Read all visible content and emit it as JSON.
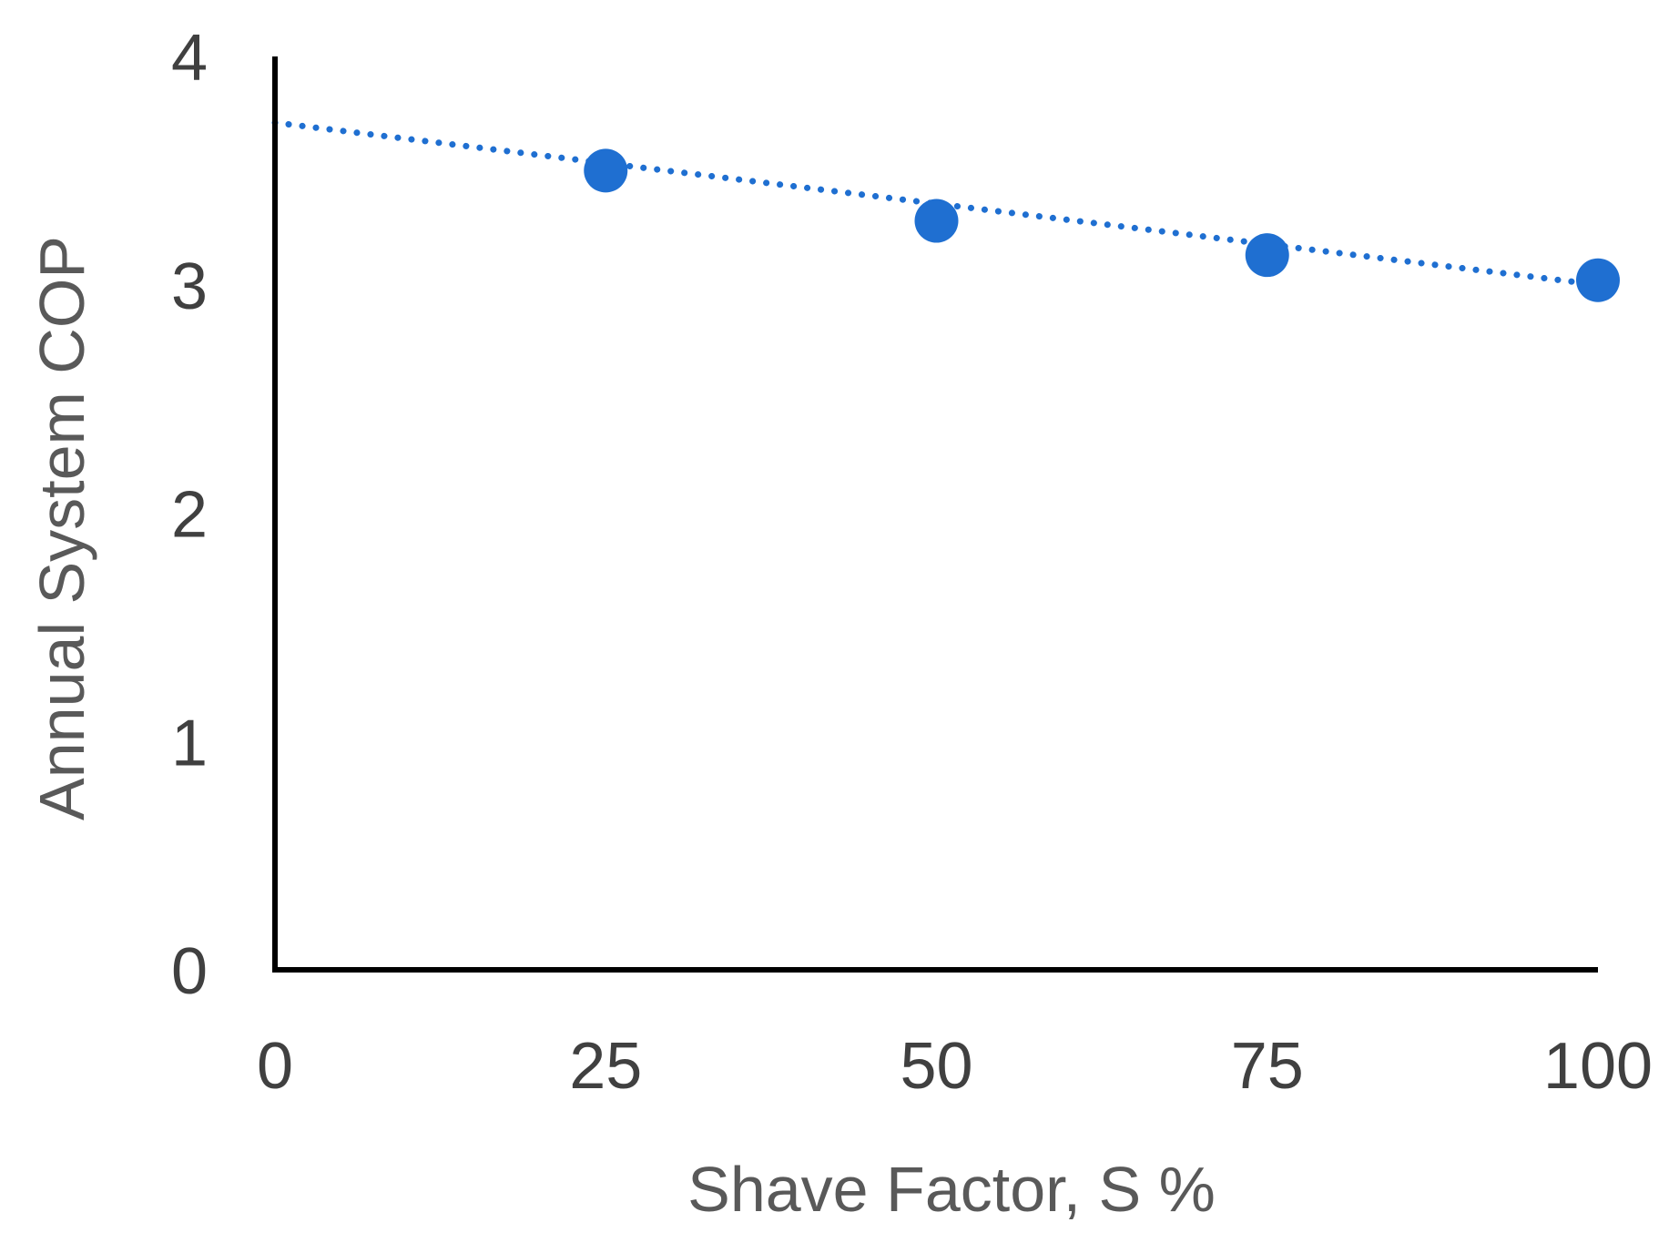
{
  "chart_data": {
    "type": "scatter",
    "title": "",
    "xlabel": "Shave Factor, S %",
    "ylabel": "Annual System COP",
    "xlim": [
      0,
      100
    ],
    "ylim": [
      0,
      4
    ],
    "x_ticks": [
      "0",
      "25",
      "50",
      "75",
      "100"
    ],
    "y_ticks": [
      "0",
      "1",
      "2",
      "3",
      "4"
    ],
    "grid": false,
    "legend": "none",
    "series": [
      {
        "color": "#1f6fd1",
        "x": [
          25,
          50,
          75,
          100
        ],
        "y": [
          3.5,
          3.28,
          3.13,
          3.02
        ]
      }
    ],
    "trendline": {
      "style": "dotted",
      "color": "#1f6fd1",
      "type": "linear",
      "x": [
        0,
        100
      ],
      "y": [
        3.71,
        3.0
      ]
    }
  }
}
